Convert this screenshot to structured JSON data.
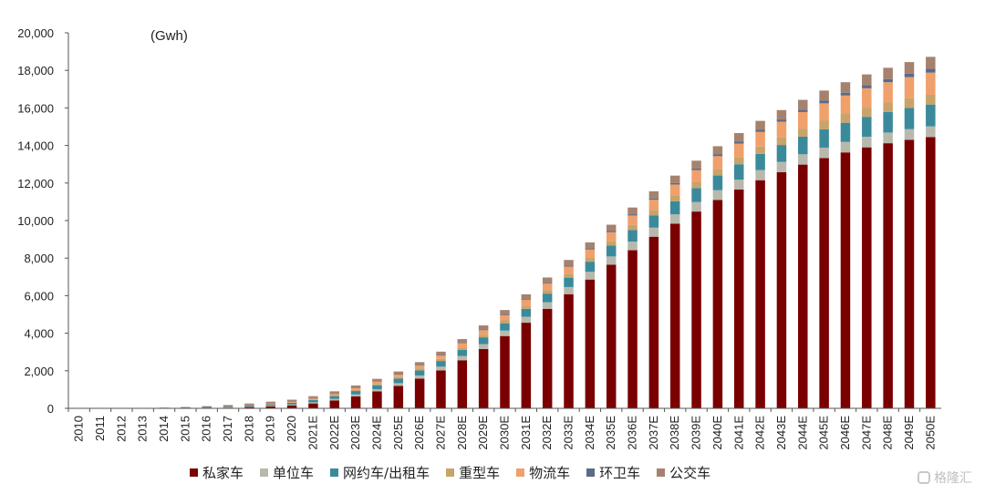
{
  "chart_data": {
    "type": "bar",
    "stacked": true,
    "unit_label": "(Gwh)",
    "ylim": [
      0,
      20000
    ],
    "yticks": [
      "0",
      "2,000",
      "4,000",
      "6,000",
      "8,000",
      "10,000",
      "12,000",
      "14,000",
      "16,000",
      "18,000",
      "20,000"
    ],
    "categories": [
      "2010",
      "2011",
      "2012",
      "2013",
      "2014",
      "2015",
      "2016",
      "2017",
      "2018",
      "2019",
      "2020",
      "2021E",
      "2022E",
      "2023E",
      "2024E",
      "2025E",
      "2026E",
      "2027E",
      "2028E",
      "2029E",
      "2030E",
      "2031E",
      "2032E",
      "2033E",
      "2034E",
      "2035E",
      "2036E",
      "2037E",
      "2038E",
      "2039E",
      "2040E",
      "2041E",
      "2042E",
      "2043E",
      "2044E",
      "2045E",
      "2046E",
      "2047E",
      "2048E",
      "2049E",
      "2050E"
    ],
    "series": [
      {
        "name": "私家车",
        "color": "#7a0000",
        "values": [
          0,
          0,
          0,
          0,
          5,
          10,
          20,
          40,
          70,
          110,
          160,
          260,
          420,
          640,
          900,
          1200,
          1580,
          2020,
          2560,
          3160,
          3850,
          4560,
          5300,
          6080,
          6860,
          7650,
          8420,
          9140,
          9830,
          10480,
          11100,
          11650,
          12150,
          12580,
          12980,
          13330,
          13630,
          13900,
          14120,
          14300,
          14450
        ]
      },
      {
        "name": "单位车",
        "color": "#b8b9ac",
        "values": [
          0,
          0,
          0,
          0,
          3,
          5,
          10,
          15,
          25,
          35,
          45,
          60,
          80,
          100,
          120,
          140,
          170,
          200,
          230,
          260,
          290,
          320,
          350,
          380,
          410,
          440,
          460,
          480,
          500,
          510,
          520,
          530,
          540,
          545,
          550,
          555,
          560,
          565,
          568,
          570,
          570
        ]
      },
      {
        "name": "网约车/出租车",
        "color": "#3a8a9c",
        "values": [
          0,
          0,
          0,
          0,
          5,
          10,
          20,
          30,
          50,
          70,
          90,
          120,
          150,
          180,
          210,
          240,
          270,
          300,
          330,
          360,
          390,
          420,
          460,
          500,
          540,
          580,
          620,
          660,
          700,
          740,
          780,
          820,
          860,
          900,
          940,
          980,
          1020,
          1060,
          1100,
          1130,
          1160
        ]
      },
      {
        "name": "重型车",
        "color": "#c8a36a",
        "values": [
          0,
          0,
          0,
          0,
          2,
          5,
          8,
          12,
          15,
          20,
          25,
          35,
          50,
          60,
          70,
          80,
          95,
          110,
          125,
          140,
          155,
          170,
          190,
          210,
          230,
          250,
          270,
          290,
          310,
          330,
          350,
          370,
          390,
          410,
          430,
          450,
          470,
          490,
          500,
          510,
          520
        ]
      },
      {
        "name": "物流车",
        "color": "#f0a06b",
        "values": [
          0,
          0,
          0,
          0,
          3,
          8,
          12,
          20,
          30,
          40,
          50,
          60,
          80,
          100,
          120,
          140,
          160,
          180,
          210,
          240,
          270,
          300,
          340,
          380,
          420,
          460,
          500,
          540,
          580,
          630,
          680,
          730,
          780,
          830,
          880,
          930,
          980,
          1030,
          1080,
          1130,
          1180
        ]
      },
      {
        "name": "环卫车",
        "color": "#5a6a8a",
        "values": [
          0,
          0,
          0,
          0,
          1,
          2,
          3,
          5,
          7,
          9,
          10,
          12,
          15,
          18,
          20,
          22,
          25,
          28,
          32,
          36,
          40,
          44,
          48,
          52,
          56,
          60,
          65,
          70,
          75,
          80,
          90,
          100,
          110,
          120,
          130,
          140,
          150,
          160,
          170,
          180,
          200
        ]
      },
      {
        "name": "公交车",
        "color": "#a5826e",
        "values": [
          0,
          0,
          5,
          10,
          20,
          30,
          40,
          50,
          60,
          70,
          80,
          100,
          110,
          120,
          130,
          140,
          160,
          180,
          200,
          220,
          240,
          260,
          280,
          300,
          320,
          340,
          360,
          380,
          400,
          420,
          440,
          460,
          480,
          500,
          520,
          540,
          560,
          580,
          600,
          620,
          640
        ]
      }
    ]
  },
  "watermark": {
    "text": "格隆汇"
  }
}
